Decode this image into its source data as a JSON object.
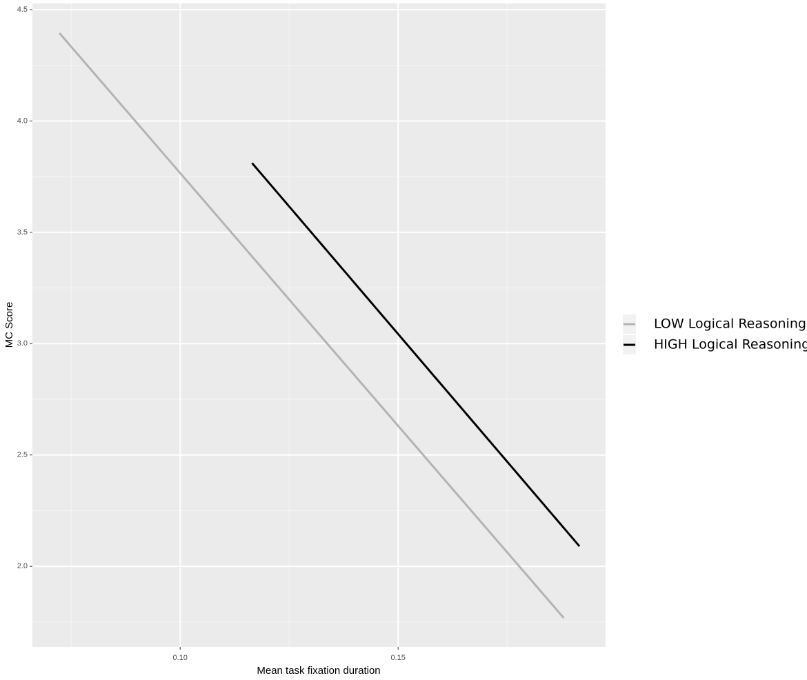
{
  "chart_data": {
    "type": "line",
    "x_label": "Mean task fixation duration",
    "y_label": "MC Score",
    "xlim": [
      0.0661,
      0.1976
    ],
    "ylim": [
      1.638,
      4.528
    ],
    "xticks": [
      {
        "value": 0.1,
        "label": "0.10"
      },
      {
        "value": 0.15,
        "label": "0.15"
      }
    ],
    "yticks": [
      {
        "value": 2,
        "label": "2.0"
      },
      {
        "value": 2.5,
        "label": "2.5"
      },
      {
        "value": 3,
        "label": "3.0"
      },
      {
        "value": 3.5,
        "label": "3.5"
      },
      {
        "value": 4,
        "label": "4.0"
      },
      {
        "value": 4.5,
        "label": "4.5"
      }
    ],
    "grid": true,
    "legend": "right",
    "series": [
      {
        "name": "LOW Logical Reasoning",
        "color": "#b3b3b3",
        "x": [
          0.0723,
          0.188
        ],
        "values": [
          4.395,
          1.768
        ]
      },
      {
        "name": "HIGH Logical Reasoning",
        "color": "#000000",
        "x": [
          0.1165,
          0.1916
        ],
        "values": [
          3.811,
          2.09
        ]
      }
    ]
  }
}
